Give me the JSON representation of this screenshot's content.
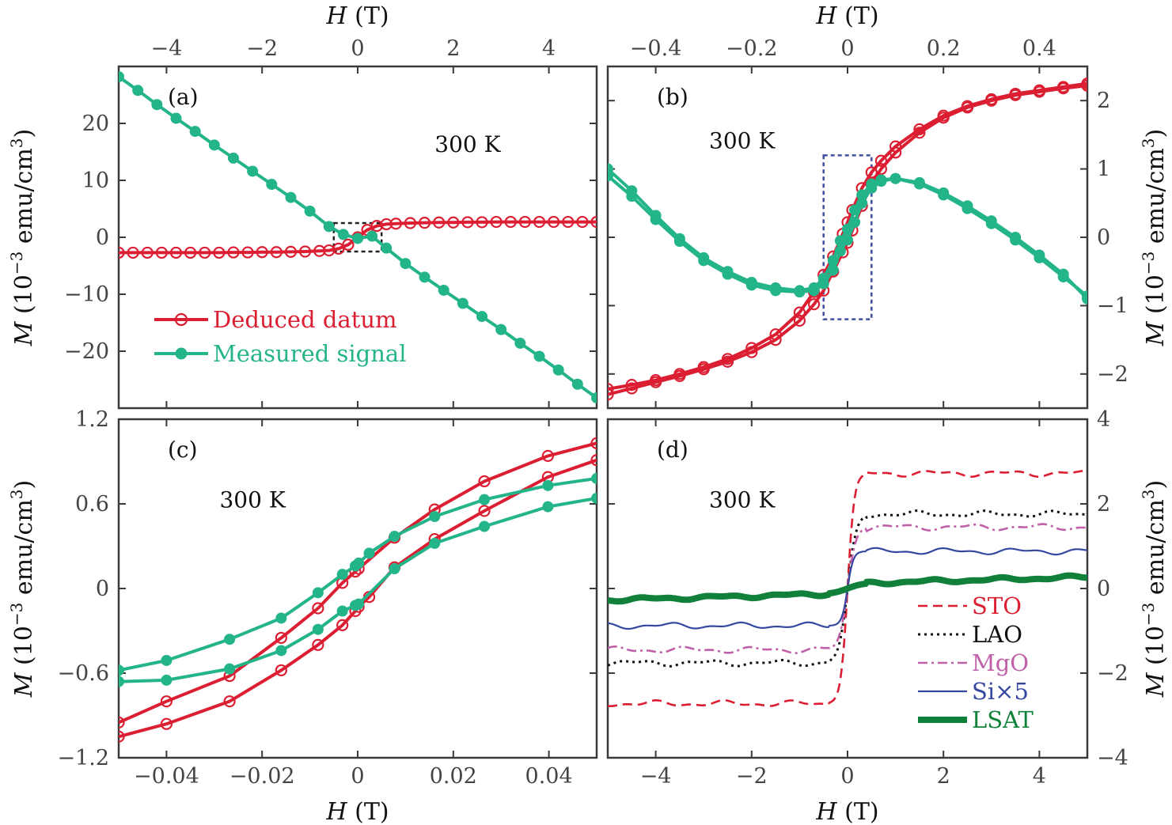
{
  "colors": {
    "deduced": "#dc1e32",
    "measured": "#23b48a",
    "box_a": "#222222",
    "box_b": "#3c4ea0",
    "STO": "#dc1e32",
    "LAO": "#111111",
    "MgO": "#c060a8",
    "Si": "#3448a0",
    "LSAT": "#10803a"
  },
  "chart_data": [
    {
      "panel": "a",
      "type": "line",
      "label": "(a)",
      "temperature": "300 K",
      "xlabel": "H (T)",
      "ylabel": "M (10^-3 emu/cm^3)",
      "x_axis_side": "top",
      "y_axis_side": "left",
      "xlim": [
        -5,
        5
      ],
      "ylim": [
        -30,
        30
      ],
      "xticks": [
        -4,
        -2,
        0,
        2,
        4
      ],
      "xtick_labels": [
        "−4",
        "−2",
        "0",
        "2",
        "4"
      ],
      "yticks": [
        -20,
        -10,
        0,
        10,
        20
      ],
      "ytick_labels": [
        "−20",
        "−10",
        "0",
        "10",
        "20"
      ],
      "legend_location": "lower-left",
      "inset_box": {
        "x": [
          -0.5,
          0.5
        ],
        "y": [
          -2.5,
          2.5
        ]
      },
      "series": [
        {
          "name": "Deduced datum",
          "color_key": "deduced",
          "marker": "open-circle",
          "x": [
            -5,
            -4.7,
            -4.4,
            -4.1,
            -3.8,
            -3.5,
            -3.2,
            -2.9,
            -2.6,
            -2.3,
            -2.0,
            -1.7,
            -1.4,
            -1.1,
            -0.8,
            -0.6,
            -0.4,
            -0.2,
            0,
            0.2,
            0.4,
            0.6,
            0.8,
            1.1,
            1.4,
            1.7,
            2.0,
            2.3,
            2.6,
            2.9,
            3.2,
            3.5,
            3.8,
            4.1,
            4.4,
            4.7,
            5.0
          ],
          "y": [
            -2.7,
            -2.7,
            -2.7,
            -2.7,
            -2.7,
            -2.7,
            -2.7,
            -2.7,
            -2.65,
            -2.65,
            -2.6,
            -2.6,
            -2.55,
            -2.5,
            -2.4,
            -2.3,
            -2.0,
            -1.3,
            0,
            1.3,
            2.0,
            2.3,
            2.4,
            2.5,
            2.55,
            2.6,
            2.6,
            2.65,
            2.65,
            2.7,
            2.7,
            2.7,
            2.7,
            2.7,
            2.7,
            2.7,
            2.7
          ]
        },
        {
          "name": "Measured signal",
          "color_key": "measured",
          "marker": "filled-circle",
          "x": [
            -5,
            -4.6,
            -4.2,
            -3.8,
            -3.4,
            -3.0,
            -2.6,
            -2.2,
            -1.8,
            -1.4,
            -1.0,
            -0.6,
            -0.3,
            0,
            0.3,
            0.6,
            1.0,
            1.4,
            1.8,
            2.2,
            2.6,
            3.0,
            3.4,
            3.8,
            4.2,
            4.6,
            5.0
          ],
          "y": [
            28.2,
            25.8,
            23.3,
            20.9,
            18.6,
            16.2,
            13.9,
            11.6,
            9.3,
            7.0,
            4.6,
            1.9,
            0.5,
            -0.2,
            0.2,
            -1.9,
            -4.6,
            -7.0,
            -9.3,
            -11.6,
            -13.9,
            -16.2,
            -18.6,
            -20.9,
            -23.3,
            -25.8,
            -28.2
          ]
        }
      ]
    },
    {
      "panel": "b",
      "type": "line",
      "label": "(b)",
      "temperature": "300 K",
      "xlabel": "H (T)",
      "ylabel": "M (10^-3 emu/cm^3)",
      "x_axis_side": "top",
      "y_axis_side": "right",
      "xlim": [
        -0.5,
        0.5
      ],
      "ylim": [
        -2.5,
        2.5
      ],
      "xticks": [
        -0.4,
        -0.2,
        0,
        0.2,
        0.4
      ],
      "xtick_labels": [
        "−0.4",
        "−0.2",
        "0",
        "0.2",
        "0.4"
      ],
      "yticks": [
        -2,
        -1,
        0,
        1,
        2
      ],
      "ytick_labels": [
        "−2",
        "−1",
        "0",
        "1",
        "2"
      ],
      "inset_box": {
        "x": [
          -0.05,
          0.05
        ],
        "y": [
          -1.2,
          1.2
        ]
      },
      "series": [
        {
          "name": "Deduced datum (upper branch)",
          "color_key": "deduced",
          "marker": "open-circle",
          "x": [
            -0.5,
            -0.45,
            -0.4,
            -0.35,
            -0.3,
            -0.25,
            -0.2,
            -0.15,
            -0.1,
            -0.07,
            -0.05,
            -0.03,
            -0.01,
            0,
            0.01,
            0.03,
            0.05,
            0.07,
            0.1,
            0.15,
            0.2,
            0.25,
            0.3,
            0.35,
            0.4,
            0.45,
            0.5
          ],
          "y": [
            -2.22,
            -2.16,
            -2.09,
            -2.0,
            -1.9,
            -1.78,
            -1.62,
            -1.42,
            -1.1,
            -0.8,
            -0.55,
            -0.28,
            0.05,
            0.22,
            0.4,
            0.72,
            0.95,
            1.12,
            1.33,
            1.58,
            1.78,
            1.92,
            2.02,
            2.1,
            2.15,
            2.2,
            2.25
          ]
        },
        {
          "name": "Deduced datum (lower branch)",
          "color_key": "deduced",
          "marker": "open-circle",
          "x": [
            -0.5,
            -0.45,
            -0.4,
            -0.35,
            -0.3,
            -0.25,
            -0.2,
            -0.15,
            -0.1,
            -0.07,
            -0.05,
            -0.03,
            -0.01,
            0,
            0.01,
            0.03,
            0.05,
            0.07,
            0.1,
            0.15,
            0.2,
            0.25,
            0.3,
            0.35,
            0.4,
            0.45,
            0.5
          ],
          "y": [
            -2.3,
            -2.21,
            -2.12,
            -2.03,
            -1.93,
            -1.82,
            -1.68,
            -1.5,
            -1.22,
            -0.98,
            -0.78,
            -0.5,
            -0.22,
            -0.08,
            0.1,
            0.46,
            0.78,
            1.0,
            1.24,
            1.53,
            1.75,
            1.9,
            2.0,
            2.08,
            2.13,
            2.18,
            2.22
          ]
        },
        {
          "name": "Measured signal (upper branch)",
          "color_key": "measured",
          "marker": "filled-circle",
          "x": [
            -0.5,
            -0.45,
            -0.4,
            -0.35,
            -0.3,
            -0.25,
            -0.2,
            -0.15,
            -0.1,
            -0.07,
            -0.05,
            -0.03,
            -0.015,
            0,
            0.015,
            0.03,
            0.05,
            0.07,
            0.1,
            0.15,
            0.2,
            0.25,
            0.3,
            0.35,
            0.4,
            0.45,
            0.5
          ],
          "y": [
            1.0,
            0.68,
            0.32,
            -0.02,
            -0.3,
            -0.5,
            -0.66,
            -0.74,
            -0.78,
            -0.74,
            -0.6,
            -0.34,
            -0.05,
            0.12,
            0.4,
            0.62,
            0.78,
            0.84,
            0.86,
            0.78,
            0.62,
            0.42,
            0.2,
            -0.04,
            -0.3,
            -0.58,
            -0.86
          ]
        },
        {
          "name": "Measured signal (lower branch)",
          "color_key": "measured",
          "marker": "filled-circle",
          "x": [
            -0.5,
            -0.45,
            -0.4,
            -0.35,
            -0.3,
            -0.25,
            -0.2,
            -0.15,
            -0.1,
            -0.07,
            -0.05,
            -0.03,
            -0.015,
            0,
            0.015,
            0.03,
            0.05,
            0.07,
            0.1,
            0.15,
            0.2,
            0.25,
            0.3,
            0.35,
            0.4,
            0.45,
            0.5
          ],
          "y": [
            0.9,
            0.6,
            0.26,
            -0.06,
            -0.34,
            -0.54,
            -0.7,
            -0.78,
            -0.8,
            -0.78,
            -0.68,
            -0.48,
            -0.2,
            -0.04,
            0.22,
            0.5,
            0.72,
            0.82,
            0.86,
            0.8,
            0.65,
            0.46,
            0.24,
            0.0,
            -0.26,
            -0.54,
            -0.9
          ]
        }
      ]
    },
    {
      "panel": "c",
      "type": "line",
      "label": "(c)",
      "temperature": "300 K",
      "xlabel": "H (T)",
      "ylabel": "M (10^-3 emu/cm^3)",
      "x_axis_side": "bottom",
      "y_axis_side": "left",
      "xlim": [
        -0.05,
        0.05
      ],
      "ylim": [
        -1.2,
        1.2
      ],
      "xticks": [
        -0.04,
        -0.02,
        0,
        0.02,
        0.04
      ],
      "xtick_labels": [
        "−0.04",
        "−0.02",
        "0",
        "0.02",
        "0.04"
      ],
      "yticks": [
        -1.2,
        -0.6,
        0,
        0.6,
        1.2
      ],
      "ytick_labels": [
        "−1.2",
        "−0.6",
        "0",
        "0.6",
        "1.2"
      ],
      "series": [
        {
          "name": "Deduced datum (upper branch)",
          "color_key": "deduced",
          "marker": "open-circle",
          "x": [
            -0.05,
            -0.04,
            -0.0268,
            -0.016,
            -0.0083,
            -0.0032,
            -0.0005,
            0.0002,
            0.0077,
            0.0161,
            0.0265,
            0.0398,
            0.05
          ],
          "y": [
            -0.95,
            -0.8,
            -0.62,
            -0.35,
            -0.14,
            0.04,
            0.12,
            0.14,
            0.36,
            0.56,
            0.76,
            0.94,
            1.03
          ]
        },
        {
          "name": "Deduced datum (lower branch)",
          "color_key": "deduced",
          "marker": "open-circle",
          "x": [
            -0.05,
            -0.04,
            -0.0268,
            -0.016,
            -0.0083,
            -0.0032,
            -0.0005,
            0.0002,
            0.0024,
            0.0077,
            0.0161,
            0.0265,
            0.0398,
            0.05
          ],
          "y": [
            -1.05,
            -0.96,
            -0.8,
            -0.58,
            -0.4,
            -0.26,
            -0.16,
            -0.13,
            -0.06,
            0.15,
            0.35,
            0.55,
            0.79,
            0.91
          ]
        },
        {
          "name": "Measured signal (upper branch)",
          "color_key": "measured",
          "marker": "filled-circle",
          "x": [
            -0.05,
            -0.04,
            -0.0268,
            -0.016,
            -0.0083,
            -0.0032,
            -0.0005,
            0.0002,
            0.0024,
            0.0077,
            0.0161,
            0.0265,
            0.0398,
            0.05
          ],
          "y": [
            -0.58,
            -0.51,
            -0.36,
            -0.21,
            -0.03,
            0.1,
            0.16,
            0.18,
            0.25,
            0.37,
            0.51,
            0.63,
            0.73,
            0.78
          ]
        },
        {
          "name": "Measured signal (lower branch)",
          "color_key": "measured",
          "marker": "filled-circle",
          "x": [
            -0.05,
            -0.04,
            -0.0268,
            -0.016,
            -0.0083,
            -0.0032,
            -0.0005,
            0.0002,
            0.0077,
            0.0161,
            0.0265,
            0.0398,
            0.05
          ],
          "y": [
            -0.66,
            -0.65,
            -0.57,
            -0.44,
            -0.29,
            -0.16,
            -0.12,
            -0.11,
            0.14,
            0.32,
            0.44,
            0.58,
            0.64
          ]
        }
      ]
    },
    {
      "panel": "d",
      "type": "line",
      "label": "(d)",
      "temperature": "300 K",
      "xlabel": "H (T)",
      "ylabel": "M (10^-3 emu/cm^3)",
      "x_axis_side": "bottom",
      "y_axis_side": "right",
      "xlim": [
        -5,
        5
      ],
      "ylim": [
        -4,
        4
      ],
      "xticks": [
        -4,
        -2,
        0,
        2,
        4
      ],
      "xtick_labels": [
        "−4",
        "−2",
        "0",
        "2",
        "4"
      ],
      "yticks": [
        -4,
        -2,
        0,
        2,
        4
      ],
      "ytick_labels": [
        "−4",
        "−2",
        "0",
        "2",
        "4"
      ],
      "legend_location": "lower-right",
      "series": [
        {
          "name": "STO",
          "color_key": "STO",
          "style": "dashed",
          "amplitude": 2.72,
          "width": 0.14,
          "offset": 0.0
        },
        {
          "name": "LAO",
          "color_key": "LAO",
          "style": "dotted",
          "amplitude": 1.76,
          "width": 0.18,
          "offset": 0.0
        },
        {
          "name": "MgO",
          "color_key": "MgO",
          "style": "dash-dot",
          "amplitude": 1.45,
          "width": 0.17,
          "offset": 0.0
        },
        {
          "name": "Si×5",
          "color_key": "Si",
          "style": "solid-thin",
          "amplitude": 0.88,
          "width": 0.12,
          "offset": 0.0
        },
        {
          "name": "LSAT",
          "color_key": "LSAT",
          "style": "solid-thick",
          "amplitude": 0.12,
          "width": 0.3,
          "offset": 0.0,
          "slope": 0.03
        }
      ]
    }
  ]
}
